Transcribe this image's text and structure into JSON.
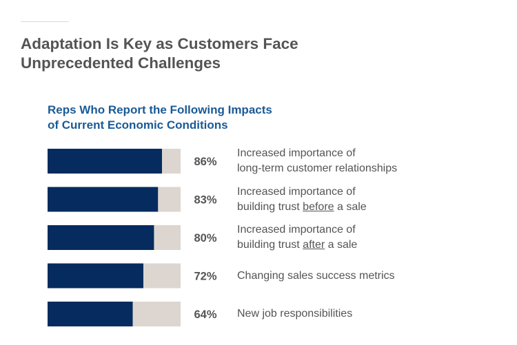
{
  "header": {
    "title_line1": "Adaptation Is Key as Customers Face",
    "title_line2": "Unprecedented Challenges"
  },
  "chart_data": {
    "type": "bar",
    "orientation": "horizontal",
    "stacked": true,
    "title_line1": "Reps Who Report the Following Impacts",
    "title_line2": "of Current Economic Conditions",
    "categories": [
      "Increased importance of long-term customer relationships",
      "Increased importance of building trust before a sale",
      "Increased importance of building trust after a sale",
      "Changing sales success metrics",
      "New job responsibilities"
    ],
    "category_display": [
      {
        "lines": [
          [
            {
              "text": "Increased importance of"
            }
          ],
          [
            {
              "text": "long-term customer relationships"
            }
          ]
        ]
      },
      {
        "lines": [
          [
            {
              "text": "Increased importance of"
            }
          ],
          [
            {
              "text": "building trust "
            },
            {
              "text": "before",
              "underline": true
            },
            {
              "text": " a sale"
            }
          ]
        ]
      },
      {
        "lines": [
          [
            {
              "text": "Increased importance of"
            }
          ],
          [
            {
              "text": "building trust "
            },
            {
              "text": "after",
              "underline": true
            },
            {
              "text": " a sale"
            }
          ]
        ]
      },
      {
        "lines": [
          [
            {
              "text": "Changing sales success metrics"
            }
          ]
        ]
      },
      {
        "lines": [
          [
            {
              "text": "New job responsibilities"
            }
          ]
        ]
      }
    ],
    "values": [
      86,
      83,
      80,
      72,
      64
    ],
    "value_labels": [
      "86%",
      "83%",
      "80%",
      "72%",
      "64%"
    ],
    "xlim": [
      0,
      100
    ],
    "grid": false,
    "legend": "none",
    "colors": {
      "value": "#062c5f",
      "remainder": "#ddd6d0"
    }
  }
}
